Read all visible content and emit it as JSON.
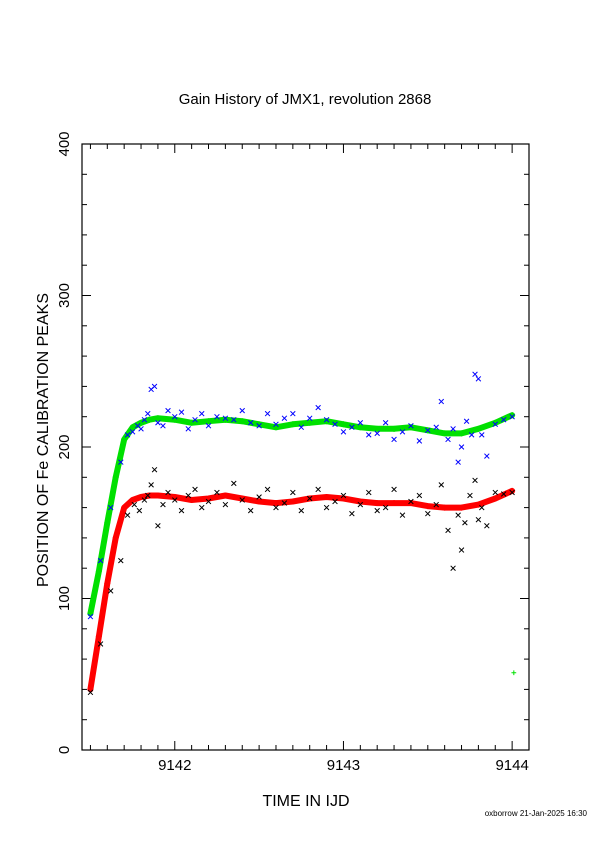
{
  "chart_data": {
    "type": "scatter",
    "title": "Gain History of JMX1, revolution 2868",
    "xlabel": "TIME IN IJD",
    "ylabel": "POSITION OF Fe CALIBRATION PEAKS",
    "xlim": [
      9141.45,
      9144.1
    ],
    "ylim": [
      0,
      400
    ],
    "x_ticks": [
      9142,
      9143,
      9144
    ],
    "x_tick_labels": [
      "9142",
      "9143",
      "9144"
    ],
    "y_ticks": [
      0,
      100,
      200,
      300,
      400
    ],
    "y_tick_labels": [
      "0",
      "100",
      "200",
      "300",
      "400"
    ],
    "x_minor_step": 0.1,
    "y_minor_step": 20,
    "grid": false,
    "legend": "none",
    "series": [
      {
        "color": "#00e000",
        "marker": "plus",
        "style": "thick-line",
        "x": [
          9141.5,
          9141.55,
          9141.6,
          9141.65,
          9141.7,
          9141.75,
          9141.8,
          9141.85,
          9141.9,
          9142.0,
          9142.1,
          9142.2,
          9142.3,
          9142.4,
          9142.5,
          9142.6,
          9142.7,
          9142.8,
          9142.9,
          9143.0,
          9143.1,
          9143.2,
          9143.3,
          9143.4,
          9143.5,
          9143.6,
          9143.7,
          9143.8,
          9143.9,
          9144.0
        ],
        "y": [
          90,
          118,
          150,
          180,
          205,
          213,
          216,
          218,
          219,
          218,
          216,
          217,
          218,
          217,
          215,
          213,
          215,
          216,
          217,
          215,
          213,
          212,
          212,
          213,
          211,
          209,
          209,
          212,
          216,
          221
        ]
      },
      {
        "color": "#ff0000",
        "marker": "plus",
        "style": "thick-line",
        "x": [
          9141.5,
          9141.55,
          9141.6,
          9141.65,
          9141.7,
          9141.75,
          9141.8,
          9141.85,
          9141.9,
          9142.0,
          9142.1,
          9142.2,
          9142.3,
          9142.4,
          9142.5,
          9142.6,
          9142.7,
          9142.8,
          9142.9,
          9143.0,
          9143.1,
          9143.2,
          9143.3,
          9143.4,
          9143.5,
          9143.6,
          9143.7,
          9143.8,
          9143.9,
          9144.0
        ],
        "y": [
          40,
          75,
          110,
          140,
          160,
          165,
          167,
          168,
          168,
          167,
          165,
          166,
          168,
          166,
          164,
          163,
          164,
          166,
          167,
          166,
          164,
          163,
          163,
          163,
          161,
          160,
          160,
          162,
          166,
          171
        ]
      },
      {
        "color": "#0000ff",
        "marker": "cross",
        "style": "scatter",
        "x": [
          9141.5,
          9141.56,
          9141.62,
          9141.68,
          9141.72,
          9141.75,
          9141.78,
          9141.8,
          9141.82,
          9141.84,
          9141.86,
          9141.88,
          9141.9,
          9141.93,
          9141.96,
          9142.0,
          9142.04,
          9142.08,
          9142.12,
          9142.16,
          9142.2,
          9142.25,
          9142.3,
          9142.35,
          9142.4,
          9142.45,
          9142.5,
          9142.55,
          9142.6,
          9142.65,
          9142.7,
          9142.75,
          9142.8,
          9142.85,
          9142.9,
          9142.95,
          9143.0,
          9143.05,
          9143.1,
          9143.15,
          9143.2,
          9143.25,
          9143.3,
          9143.35,
          9143.4,
          9143.45,
          9143.5,
          9143.55,
          9143.58,
          9143.62,
          9143.65,
          9143.68,
          9143.7,
          9143.73,
          9143.76,
          9143.78,
          9143.8,
          9143.82,
          9143.85,
          9143.9,
          9143.95,
          9144.0
        ],
        "y": [
          88,
          125,
          160,
          190,
          208,
          210,
          214,
          212,
          218,
          222,
          238,
          240,
          216,
          214,
          224,
          220,
          223,
          212,
          218,
          222,
          214,
          220,
          219,
          218,
          224,
          216,
          214,
          222,
          215,
          219,
          222,
          213,
          219,
          226,
          218,
          215,
          210,
          213,
          216,
          208,
          209,
          216,
          205,
          210,
          214,
          204,
          211,
          213,
          230,
          205,
          212,
          190,
          200,
          217,
          208,
          248,
          245,
          208,
          194,
          215,
          218,
          220
        ]
      },
      {
        "color": "#000000",
        "marker": "cross",
        "style": "scatter",
        "x": [
          9141.5,
          9141.56,
          9141.62,
          9141.68,
          9141.72,
          9141.76,
          9141.79,
          9141.82,
          9141.84,
          9141.86,
          9141.88,
          9141.9,
          9141.93,
          9141.96,
          9142.0,
          9142.04,
          9142.08,
          9142.12,
          9142.16,
          9142.2,
          9142.25,
          9142.3,
          9142.35,
          9142.4,
          9142.45,
          9142.5,
          9142.55,
          9142.6,
          9142.65,
          9142.7,
          9142.75,
          9142.8,
          9142.85,
          9142.9,
          9142.95,
          9143.0,
          9143.05,
          9143.1,
          9143.15,
          9143.2,
          9143.25,
          9143.3,
          9143.35,
          9143.4,
          9143.45,
          9143.5,
          9143.55,
          9143.58,
          9143.62,
          9143.65,
          9143.68,
          9143.7,
          9143.72,
          9143.75,
          9143.78,
          9143.8,
          9143.82,
          9143.85,
          9143.9,
          9143.95,
          9144.0
        ],
        "y": [
          38,
          70,
          105,
          125,
          155,
          162,
          158,
          165,
          168,
          175,
          185,
          148,
          162,
          170,
          165,
          158,
          168,
          172,
          160,
          164,
          170,
          162,
          176,
          165,
          158,
          167,
          172,
          160,
          163,
          170,
          158,
          166,
          172,
          160,
          164,
          168,
          156,
          162,
          170,
          158,
          160,
          172,
          155,
          164,
          168,
          156,
          162,
          175,
          145,
          120,
          155,
          132,
          150,
          168,
          178,
          152,
          160,
          148,
          170,
          169,
          170
        ]
      },
      {
        "color": "#00e000",
        "marker": "plus",
        "style": "scatter",
        "x": [
          9144.01
        ],
        "y": [
          51
        ]
      }
    ]
  },
  "footer": {
    "stamp": "oxborrow 21-Jan-2025 16:30"
  }
}
